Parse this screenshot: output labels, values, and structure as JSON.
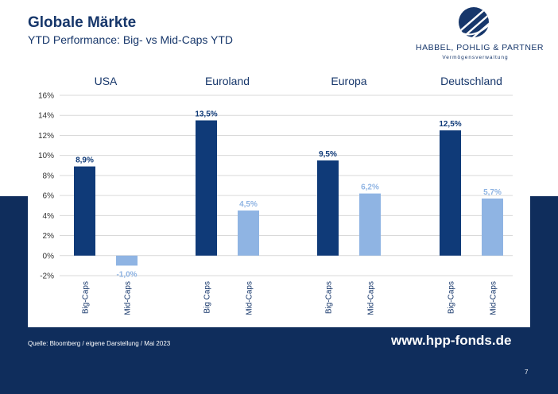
{
  "header": {
    "title": "Globale Märkte",
    "subtitle": "YTD Performance: Big- vs Mid-Caps YTD"
  },
  "logo": {
    "name": "HABBEL, POHLIG & PARTNER",
    "tagline": "Vermögensverwaltung",
    "icon": "hpp-globe-icon"
  },
  "footer": {
    "source": "Quelle: Bloomberg / eigene Darstellung / Mai 2023",
    "website": "www.hpp-fonds.de",
    "page_number": "7"
  },
  "colors": {
    "big_caps": "#0f3a78",
    "mid_caps": "#8fb4e3",
    "brand": "#17376b",
    "band": "#0f2d5c"
  },
  "chart_data": {
    "type": "bar",
    "ylim": [
      -2,
      16
    ],
    "yticks": [
      -2,
      0,
      2,
      4,
      6,
      8,
      10,
      12,
      14,
      16
    ],
    "ytick_labels": [
      "-2%",
      "0%",
      "2%",
      "4%",
      "6%",
      "8%",
      "10%",
      "12%",
      "14%",
      "16%"
    ],
    "grid": true,
    "groups": [
      {
        "label": "USA",
        "bars": [
          {
            "category": "Big-Caps",
            "value": 8.9,
            "label": "8,9%"
          },
          {
            "category": "Mid-Caps",
            "value": -1.0,
            "label": "-1,0%"
          }
        ]
      },
      {
        "label": "Euroland",
        "bars": [
          {
            "category": "Big Caps",
            "value": 13.5,
            "label": "13,5%"
          },
          {
            "category": "Mid-Caps",
            "value": 4.5,
            "label": "4,5%"
          }
        ]
      },
      {
        "label": "Europa",
        "bars": [
          {
            "category": "Big-Caps",
            "value": 9.5,
            "label": "9,5%"
          },
          {
            "category": "Mid-Caps",
            "value": 6.2,
            "label": "6,2%"
          }
        ]
      },
      {
        "label": "Deutschland",
        "bars": [
          {
            "category": "Big-Caps",
            "value": 12.5,
            "label": "12,5%"
          },
          {
            "category": "Mid-Caps",
            "value": 5.7,
            "label": "5,7%"
          }
        ]
      }
    ]
  }
}
